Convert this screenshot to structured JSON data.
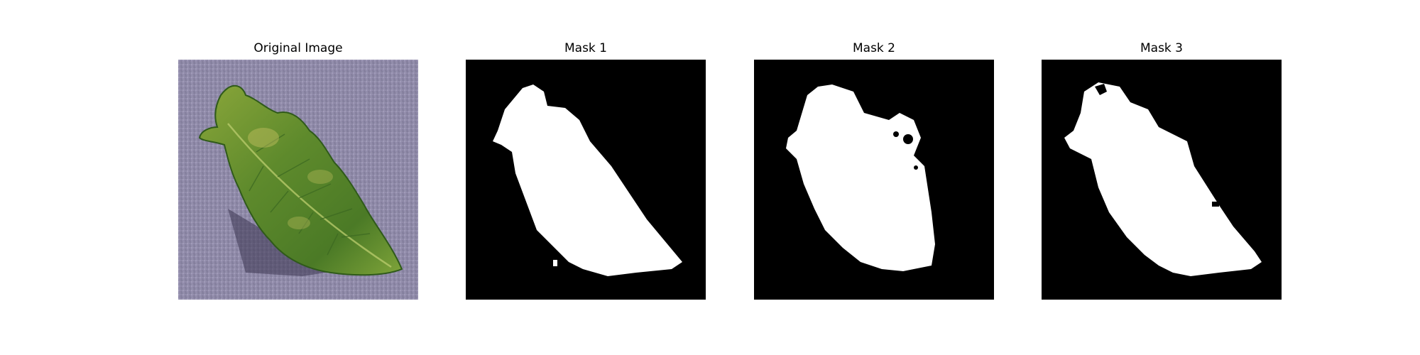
{
  "panels": [
    {
      "title": "Original Image"
    },
    {
      "title": "Mask 1"
    },
    {
      "title": "Mask 2"
    },
    {
      "title": "Mask 3"
    }
  ],
  "colors": {
    "background_surface": "#8f8aa8",
    "leaf_dark": "#3f6b25",
    "leaf_light": "#9fae3a",
    "mask_background": "#000000",
    "mask_foreground": "#ffffff"
  }
}
